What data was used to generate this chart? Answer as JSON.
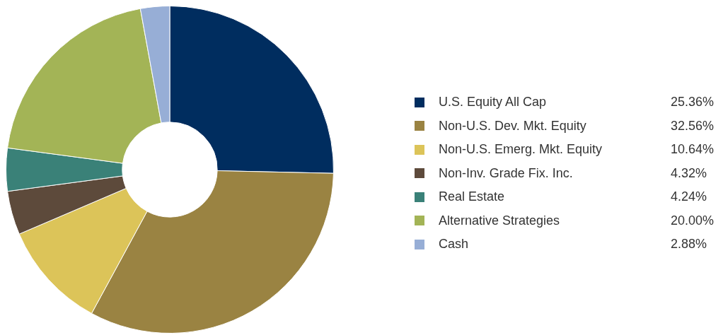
{
  "chart_data": {
    "type": "donut",
    "categories": [
      "U.S. Equity All Cap",
      "Non-U.S. Dev. Mkt. Equity",
      "Non-U.S. Emerg. Mkt. Equity",
      "Non-Inv. Grade Fix. Inc.",
      "Real Estate",
      "Alternative Strategies",
      "Cash"
    ],
    "values": [
      25.36,
      32.56,
      10.64,
      4.32,
      4.24,
      20.0,
      2.88
    ],
    "value_labels": [
      "25.36%",
      "32.56%",
      "10.64%",
      "4.32%",
      "4.24%",
      "20.00%",
      "2.88%"
    ],
    "colors": [
      "#002d5f",
      "#9a8342",
      "#dcc459",
      "#5d4a3b",
      "#3a8178",
      "#a3b456",
      "#97aed6"
    ],
    "legend": "right"
  }
}
